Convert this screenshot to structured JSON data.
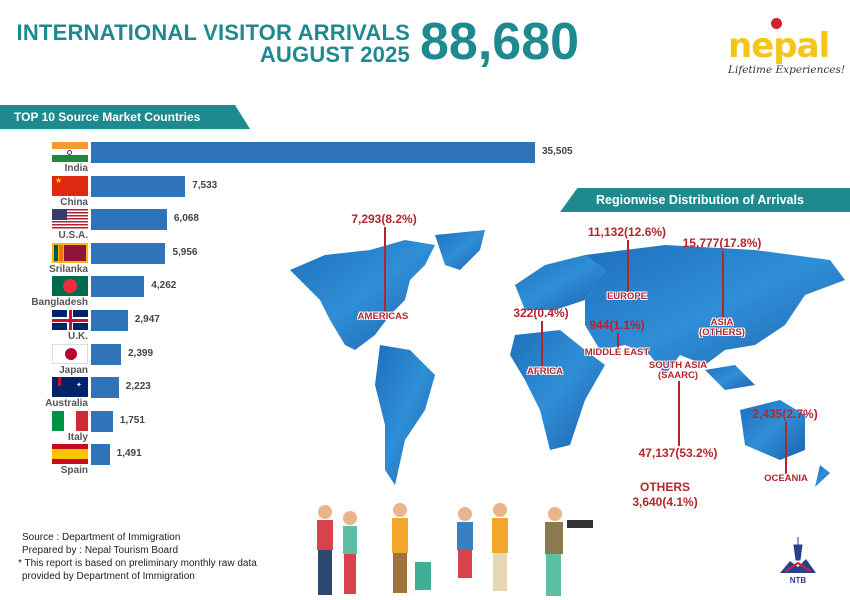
{
  "header": {
    "title_line1": "INTERNATIONAL VISITOR ARRIVALS",
    "title_line2": "AUGUST 2025",
    "total_arrivals": "88,680"
  },
  "logo": {
    "word": "nepal",
    "tagline": "Lifetime Experiences!"
  },
  "chart_data": [
    {
      "type": "bar",
      "orientation": "horizontal",
      "title": "TOP 10 Source Market Countries",
      "categories": [
        "India",
        "China",
        "U.S.A.",
        "Srilanka",
        "Bangladesh",
        "U.K.",
        "Japan",
        "Australia",
        "Italy",
        "Spain"
      ],
      "values": [
        35505,
        7533,
        6068,
        5956,
        4262,
        2947,
        2399,
        2223,
        1751,
        1491
      ],
      "value_labels": [
        "35,505",
        "7,533",
        "6,068",
        "5,956",
        "4,262",
        "2,947",
        "2,399",
        "2,223",
        "1,751",
        "1,491"
      ],
      "bar_color": "#2f73b8"
    },
    {
      "type": "table",
      "title": "Regionwise Distribution of Arrivals",
      "regions": [
        {
          "name": "AMERICAS",
          "value": 7293,
          "label": "7,293(8.2%)"
        },
        {
          "name": "EUROPE",
          "value": 11132,
          "label": "11,132(12.6%)"
        },
        {
          "name": "ASIA (OTHERS)",
          "value": 15777,
          "label": "15,777(17.8%)"
        },
        {
          "name": "AFRICA",
          "value": 322,
          "label": "322(0.4%)"
        },
        {
          "name": "MIDDLE EAST",
          "value": 944,
          "label": "944(1.1%)"
        },
        {
          "name": "SOUTH ASIA (SAARC)",
          "value": 47137,
          "label": "47,137(53.2%)"
        },
        {
          "name": "OCEANIA",
          "value": 2435,
          "label": "2,435(2.7%)"
        },
        {
          "name": "OTHERS",
          "value": 3640,
          "label": "3,640(4.1%)"
        }
      ]
    }
  ],
  "footer": {
    "source": "Source : Department of Immigration",
    "prepared": "Prepared by : Nepal Tourism Board",
    "note1": "* This report is based on preliminary monthly raw data",
    "note2": "provided by Department of Immigration",
    "ntb": "NTB"
  },
  "colors": {
    "teal": "#1e8a8f",
    "bar": "#2f73b8",
    "map": "#2a7dc4",
    "region_text": "#b3262c",
    "logo": "#f5c518"
  }
}
